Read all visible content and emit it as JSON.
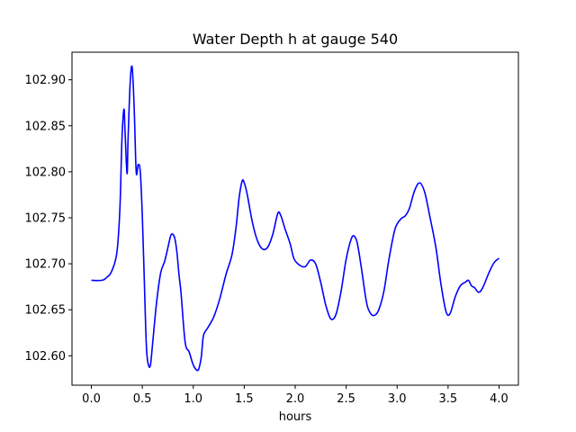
{
  "chart_data": {
    "type": "line",
    "title": "Water Depth h at gauge 540",
    "xlabel": "hours",
    "ylabel": "",
    "xlim": [
      -0.19,
      4.19
    ],
    "ylim": [
      102.568,
      102.93
    ],
    "xticks": [
      0.0,
      0.5,
      1.0,
      1.5,
      2.0,
      2.5,
      3.0,
      3.5,
      4.0
    ],
    "xtick_labels": [
      "0.0",
      "0.5",
      "1.0",
      "1.5",
      "2.0",
      "2.5",
      "3.0",
      "3.5",
      "4.0"
    ],
    "yticks": [
      102.6,
      102.65,
      102.7,
      102.75,
      102.8,
      102.85,
      102.9
    ],
    "ytick_labels": [
      "102.60",
      "102.65",
      "102.70",
      "102.75",
      "102.80",
      "102.85",
      "102.90"
    ],
    "grid": false,
    "legend": false,
    "series": [
      {
        "color": "#0000ff",
        "x": [
          0.0,
          0.1,
          0.15,
          0.2,
          0.25,
          0.28,
          0.3,
          0.32,
          0.33,
          0.35,
          0.36,
          0.38,
          0.4,
          0.42,
          0.44,
          0.46,
          0.48,
          0.5,
          0.52,
          0.54,
          0.56,
          0.58,
          0.6,
          0.64,
          0.68,
          0.72,
          0.76,
          0.78,
          0.8,
          0.82,
          0.84,
          0.86,
          0.88,
          0.92,
          0.96,
          1.0,
          1.04,
          1.06,
          1.08,
          1.1,
          1.14,
          1.2,
          1.26,
          1.32,
          1.38,
          1.42,
          1.45,
          1.48,
          1.5,
          1.53,
          1.58,
          1.63,
          1.68,
          1.73,
          1.78,
          1.83,
          1.86,
          1.9,
          1.95,
          1.99,
          2.05,
          2.1,
          2.15,
          2.2,
          2.25,
          2.3,
          2.35,
          2.4,
          2.45,
          2.5,
          2.55,
          2.58,
          2.61,
          2.65,
          2.7,
          2.74,
          2.78,
          2.82,
          2.87,
          2.92,
          2.98,
          3.04,
          3.08,
          3.12,
          3.17,
          3.22,
          3.27,
          3.32,
          3.38,
          3.43,
          3.48,
          3.52,
          3.57,
          3.62,
          3.67,
          3.7,
          3.73,
          3.76,
          3.8,
          3.84,
          3.9,
          3.95,
          4.0
        ],
        "y": [
          102.682,
          102.682,
          102.685,
          102.692,
          102.712,
          102.76,
          102.835,
          102.868,
          102.845,
          102.798,
          102.835,
          102.895,
          102.914,
          102.87,
          102.8,
          102.808,
          102.8,
          102.752,
          102.68,
          102.61,
          102.59,
          102.59,
          102.612,
          102.658,
          102.69,
          102.703,
          102.722,
          102.731,
          102.732,
          102.727,
          102.712,
          102.688,
          102.668,
          102.615,
          102.604,
          102.59,
          102.584,
          102.588,
          102.6,
          102.622,
          102.63,
          102.642,
          102.662,
          102.688,
          102.71,
          102.74,
          102.772,
          102.79,
          102.788,
          102.775,
          102.745,
          102.725,
          102.716,
          102.718,
          102.732,
          102.755,
          102.752,
          102.738,
          102.722,
          102.705,
          102.698,
          102.697,
          102.704,
          102.7,
          102.68,
          102.655,
          102.64,
          102.645,
          102.67,
          102.705,
          102.727,
          102.73,
          102.722,
          102.695,
          102.658,
          102.646,
          102.644,
          102.65,
          102.67,
          102.705,
          102.738,
          102.749,
          102.752,
          102.76,
          102.779,
          102.788,
          102.778,
          102.752,
          102.718,
          102.678,
          102.648,
          102.646,
          102.664,
          102.676,
          102.68,
          102.682,
          102.676,
          102.674,
          102.669,
          102.674,
          102.69,
          102.701,
          102.706
        ]
      }
    ]
  }
}
